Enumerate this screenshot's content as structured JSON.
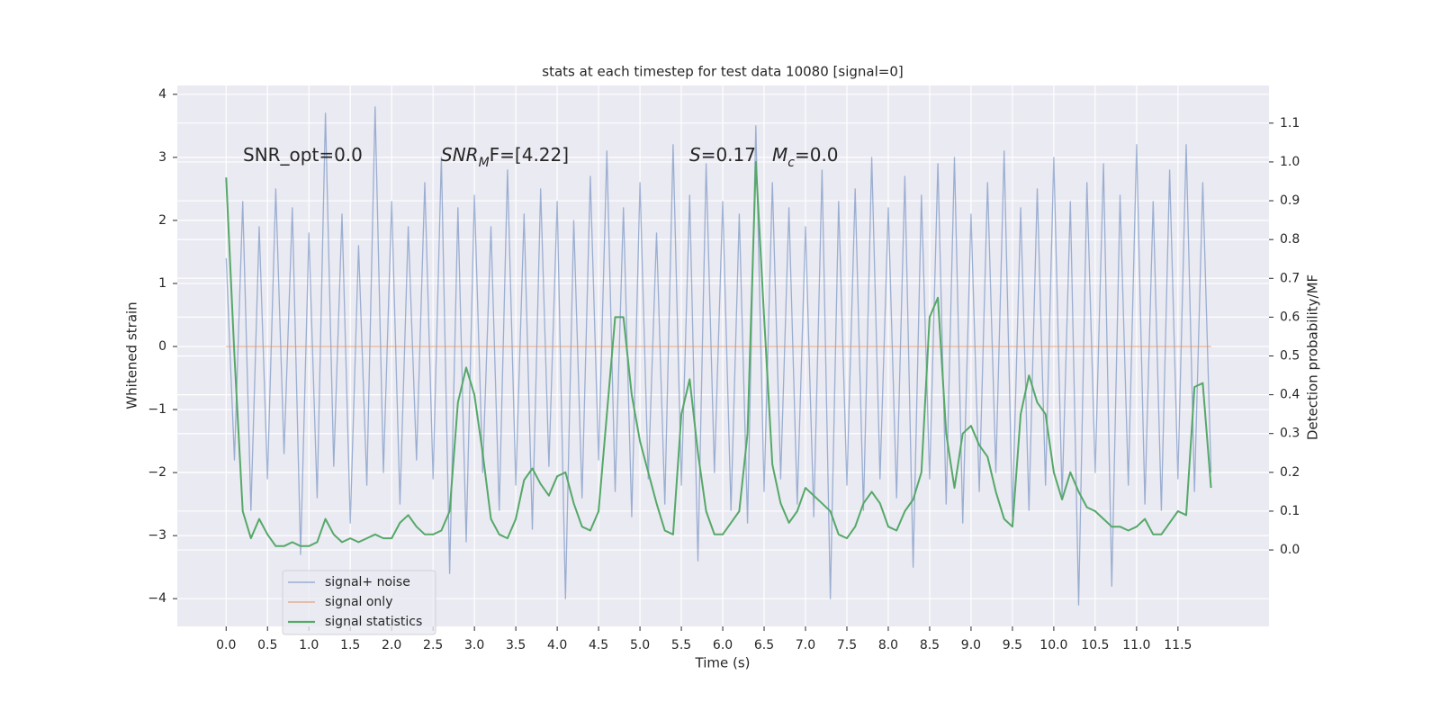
{
  "chart_data": {
    "type": "line",
    "title": "stats at each timestep for test data 10080 [signal=0]",
    "xlabel": "Time (s)",
    "ylabel": "Whitened strain",
    "y2label": "Detection probability/MF",
    "grid": true,
    "legend": "lower left",
    "annotations": [
      {
        "text": "SNR_opt=0.0"
      },
      {
        "base": "SNR",
        "sub": "M",
        "after": "F=[4.22]"
      },
      {
        "base": "S",
        "after": "=0.17"
      },
      {
        "base": "M",
        "sub": "c",
        "after": "=0.0"
      }
    ],
    "xlim": [
      -0.59,
      12.6
    ],
    "ylim": [
      -4.44,
      4.14
    ],
    "y2lim": [
      -0.197,
      1.197
    ],
    "xticks": [
      {
        "value": 0,
        "label": "0.0"
      },
      {
        "value": 0.5,
        "label": "0.5"
      },
      {
        "value": 1,
        "label": "1.0"
      },
      {
        "value": 1.5,
        "label": "1.5"
      },
      {
        "value": 2,
        "label": "2.0"
      },
      {
        "value": 2.5,
        "label": "2.5"
      },
      {
        "value": 3,
        "label": "3.0"
      },
      {
        "value": 3.5,
        "label": "3.5"
      },
      {
        "value": 4,
        "label": "4.0"
      },
      {
        "value": 4.5,
        "label": "4.5"
      },
      {
        "value": 5,
        "label": "5.0"
      },
      {
        "value": 5.5,
        "label": "5.5"
      },
      {
        "value": 6,
        "label": "6.0"
      },
      {
        "value": 6.5,
        "label": "6.5"
      },
      {
        "value": 7,
        "label": "7.0"
      },
      {
        "value": 7.5,
        "label": "7.5"
      },
      {
        "value": 8,
        "label": "8.0"
      },
      {
        "value": 8.5,
        "label": "8.5"
      },
      {
        "value": 9,
        "label": "9.0"
      },
      {
        "value": 9.5,
        "label": "9.5"
      },
      {
        "value": 10,
        "label": "10.0"
      },
      {
        "value": 10.5,
        "label": "10.5"
      },
      {
        "value": 11,
        "label": "11.0"
      },
      {
        "value": 11.5,
        "label": "11.5"
      }
    ],
    "yticks": [
      {
        "value": -4,
        "label": "−4"
      },
      {
        "value": -3,
        "label": "−3"
      },
      {
        "value": -2,
        "label": "−2"
      },
      {
        "value": -1,
        "label": "−1"
      },
      0,
      1,
      2,
      3,
      4
    ],
    "y2ticks": [
      {
        "value": 0,
        "label": "0.0"
      },
      {
        "value": 0.1,
        "label": "0.1"
      },
      {
        "value": 0.2,
        "label": "0.2"
      },
      {
        "value": 0.3,
        "label": "0.3"
      },
      {
        "value": 0.4,
        "label": "0.4"
      },
      {
        "value": 0.5,
        "label": "0.5"
      },
      {
        "value": 0.6,
        "label": "0.6"
      },
      {
        "value": 0.7,
        "label": "0.7"
      },
      {
        "value": 0.8,
        "label": "0.8"
      },
      {
        "value": 0.9,
        "label": "0.9"
      },
      {
        "value": 1,
        "label": "1.0"
      },
      {
        "value": 1.1,
        "label": "1.1"
      }
    ],
    "x": [
      0,
      0.1,
      0.2,
      0.3,
      0.4,
      0.5,
      0.6,
      0.7,
      0.8,
      0.9,
      1,
      1.1,
      1.2,
      1.3,
      1.4,
      1.5,
      1.6,
      1.7,
      1.8,
      1.9,
      2,
      2.1,
      2.2,
      2.3,
      2.4,
      2.5,
      2.6,
      2.7,
      2.8,
      2.9,
      3,
      3.1,
      3.2,
      3.3,
      3.4,
      3.5,
      3.6,
      3.7,
      3.8,
      3.9,
      4,
      4.1,
      4.2,
      4.3,
      4.4,
      4.5,
      4.6,
      4.7,
      4.8,
      4.9,
      5,
      5.1,
      5.2,
      5.3,
      5.4,
      5.5,
      5.6,
      5.7,
      5.8,
      5.9,
      6,
      6.1,
      6.2,
      6.3,
      6.4,
      6.5,
      6.6,
      6.7,
      6.8,
      6.9,
      7,
      7.1,
      7.2,
      7.3,
      7.4,
      7.5,
      7.6,
      7.7,
      7.8,
      7.9,
      8,
      8.1,
      8.2,
      8.3,
      8.4,
      8.5,
      8.6,
      8.7,
      8.8,
      8.9,
      9,
      9.1,
      9.2,
      9.3,
      9.4,
      9.5,
      9.6,
      9.7,
      9.8,
      9.9,
      10,
      10.1,
      10.2,
      10.3,
      10.4,
      10.5,
      10.6,
      10.7,
      10.8,
      10.9,
      11,
      11.1,
      11.2,
      11.3,
      11.4,
      11.5,
      11.6,
      11.7,
      11.8,
      11.9
    ],
    "series": [
      {
        "name": "signal+ noise",
        "color": "#4c72b0",
        "values": [
          1.4,
          -1.8,
          2.3,
          -2.6,
          1.9,
          -2.1,
          2.5,
          -1.7,
          2.2,
          -3.3,
          1.8,
          -2.4,
          3.7,
          -1.9,
          2.1,
          -2.8,
          1.6,
          -2.2,
          3.8,
          -2.0,
          2.3,
          -2.5,
          1.9,
          -1.8,
          2.6,
          -2.1,
          3.0,
          -3.6,
          2.2,
          -3.1,
          2.4,
          -2.0,
          1.9,
          -2.6,
          2.8,
          -2.2,
          2.1,
          -2.9,
          2.5,
          -1.9,
          2.3,
          -4.0,
          2.0,
          -2.4,
          2.7,
          -1.8,
          3.1,
          -2.3,
          2.2,
          -2.7,
          2.6,
          -2.1,
          1.8,
          -2.5,
          3.2,
          -2.2,
          2.4,
          -3.4,
          2.9,
          -2.0,
          2.3,
          -2.6,
          2.1,
          -2.8,
          3.5,
          -2.3,
          2.6,
          -2.1,
          2.2,
          -2.5,
          1.9,
          -2.7,
          2.8,
          -4.0,
          2.3,
          -2.2,
          2.5,
          -2.6,
          3.0,
          -2.1,
          2.2,
          -2.4,
          2.7,
          -3.5,
          2.4,
          -2.1,
          2.9,
          -2.5,
          3.0,
          -2.8,
          2.1,
          -2.3,
          2.6,
          -2.0,
          3.1,
          -2.7,
          2.2,
          -2.6,
          2.5,
          -2.2,
          3.0,
          -2.4,
          2.3,
          -4.1,
          2.6,
          -2.0,
          2.9,
          -3.8,
          2.4,
          -2.2,
          3.2,
          -2.5,
          2.3,
          -2.6,
          2.8,
          -2.1,
          3.2,
          -2.3,
          2.6,
          -2.0
        ]
      },
      {
        "name": "signal only",
        "color": "#dd8452",
        "x": [
          0,
          11.9
        ],
        "values": [
          0,
          0
        ]
      },
      {
        "name": "signal statistics",
        "color": "#55a868",
        "axis": "y2",
        "values": [
          0.96,
          0.5,
          0.1,
          0.03,
          0.08,
          0.04,
          0.01,
          0.01,
          0.02,
          0.01,
          0.01,
          0.02,
          0.08,
          0.04,
          0.02,
          0.03,
          0.02,
          0.03,
          0.04,
          0.03,
          0.03,
          0.07,
          0.09,
          0.06,
          0.04,
          0.04,
          0.05,
          0.1,
          0.38,
          0.47,
          0.4,
          0.25,
          0.08,
          0.04,
          0.03,
          0.08,
          0.18,
          0.21,
          0.17,
          0.14,
          0.19,
          0.2,
          0.12,
          0.06,
          0.05,
          0.1,
          0.35,
          0.6,
          0.6,
          0.4,
          0.28,
          0.2,
          0.12,
          0.05,
          0.04,
          0.35,
          0.44,
          0.25,
          0.1,
          0.04,
          0.04,
          0.07,
          0.1,
          0.3,
          1.0,
          0.6,
          0.22,
          0.12,
          0.07,
          0.1,
          0.16,
          0.14,
          0.12,
          0.1,
          0.04,
          0.03,
          0.06,
          0.12,
          0.15,
          0.12,
          0.06,
          0.05,
          0.1,
          0.13,
          0.2,
          0.6,
          0.65,
          0.3,
          0.16,
          0.3,
          0.32,
          0.27,
          0.24,
          0.15,
          0.08,
          0.06,
          0.35,
          0.45,
          0.38,
          0.35,
          0.2,
          0.13,
          0.2,
          0.15,
          0.11,
          0.1,
          0.08,
          0.06,
          0.06,
          0.05,
          0.06,
          0.08,
          0.04,
          0.04,
          0.07,
          0.1,
          0.09,
          0.42,
          0.43,
          0.16
        ]
      }
    ]
  }
}
